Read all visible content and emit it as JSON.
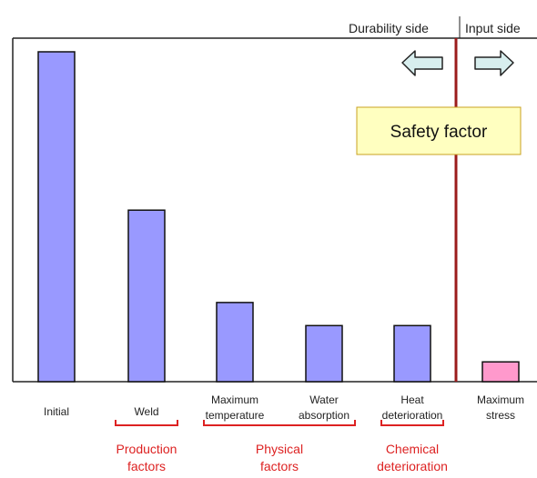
{
  "header": {
    "durability_label": "Durability side",
    "input_label": "Input side"
  },
  "safety_box": {
    "label": "Safety factor",
    "fill": "#ffffc0",
    "border": "#c8a020"
  },
  "colors": {
    "bar_main": "#9999ff",
    "bar_stress": "#ff99cc",
    "divider": "#9b1c1c",
    "bracket": "#dd2222",
    "arrow_fill": "#d8eeee"
  },
  "chart_data": {
    "type": "bar",
    "title": "",
    "xlabel": "",
    "ylabel": "",
    "ylim": [
      0,
      100
    ],
    "grid": false,
    "categories": [
      [
        "Initial"
      ],
      [
        "Weld"
      ],
      [
        "Maximum",
        "temperature"
      ],
      [
        "Water",
        "absorption"
      ],
      [
        "Heat",
        "deterioration"
      ],
      [
        "Maximum",
        "stress"
      ]
    ],
    "values": [
      100,
      52,
      24,
      17,
      17,
      6
    ],
    "bar_colors": [
      "#9999ff",
      "#9999ff",
      "#9999ff",
      "#9999ff",
      "#9999ff",
      "#ff99cc"
    ],
    "groups": [
      {
        "lines": [
          "Production",
          "factors"
        ],
        "from": 1,
        "to": 1
      },
      {
        "lines": [
          "Physical",
          "factors"
        ],
        "from": 2,
        "to": 3
      },
      {
        "lines": [
          "Chemical",
          "deterioration"
        ],
        "from": 4,
        "to": 4
      }
    ]
  }
}
